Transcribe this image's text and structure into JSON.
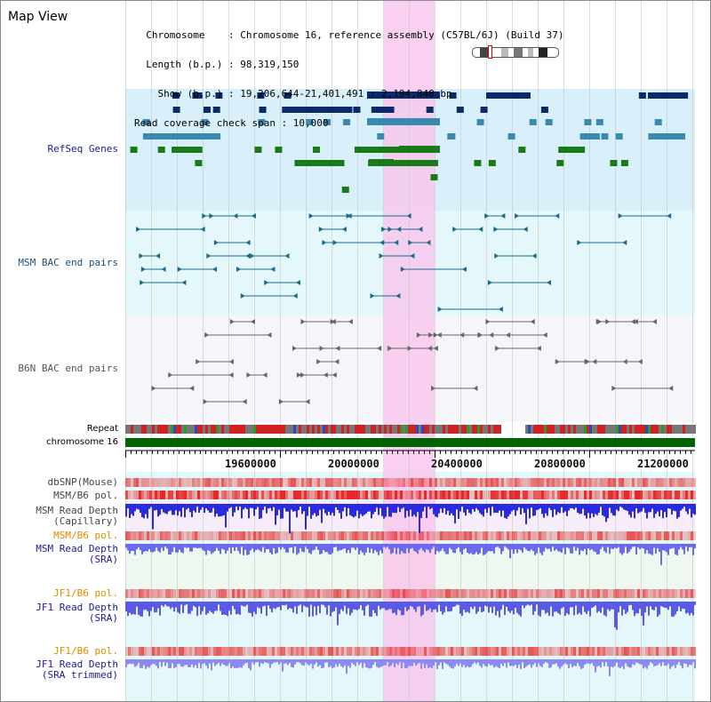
{
  "header": {
    "title": "Map View",
    "info_lines": [
      "  Chromosome    : Chromosome 16, reference assembly (C57BL/6J) (Build 37)",
      "  Length (b.p.) : 98,319,150",
      "    Show (b.p.) : 19,206,644-21,401,491 : 2,194,848 bp",
      "Read coverage check span : 10,000"
    ]
  },
  "tracks": {
    "refseq": "RefSeq Genes",
    "msm_bac": "MSM BAC end pairs",
    "b6n_bac": "B6N BAC end pairs",
    "repeat": "Repeat",
    "chromosome": "chromosome 16",
    "dbsnp": "dbSNP(Mouse)",
    "msm_b6_pol_1": "MSM/B6 pol.",
    "msm_depth_cap_1": "MSM Read Depth",
    "msm_depth_cap_2": "(Capillary)",
    "msm_b6_pol_2": "MSM/B6 pol.",
    "msm_depth_sra_1": "MSM Read Depth",
    "msm_depth_sra_2": "(SRA)",
    "jf1_b6_pol_1": "JF1/B6 pol.",
    "jf1_depth_sra_1": "JF1 Read Depth",
    "jf1_depth_sra_2": "(SRA)",
    "jf1_b6_pol_2": "JF1/B6 pol.",
    "jf1_depth_trim_1": "JF1 Read Depth",
    "jf1_depth_trim_2": "(SRA trimmed)"
  },
  "ruler": {
    "ticks": [
      "19600000",
      "20000000",
      "20400000",
      "20800000",
      "21200000"
    ]
  },
  "colors": {
    "refseq_label": "#1a1a9a",
    "msm_label": "#1a4f7a",
    "b6n_label": "#555555",
    "blue_label": "#1a1a9a",
    "orange_label": "#e08a00",
    "highlight": "#f8c8ec",
    "refseq_bg": "#d9f0fa",
    "msm_bg": "#e4f8fb",
    "chromosome_bar": "#006400"
  }
}
